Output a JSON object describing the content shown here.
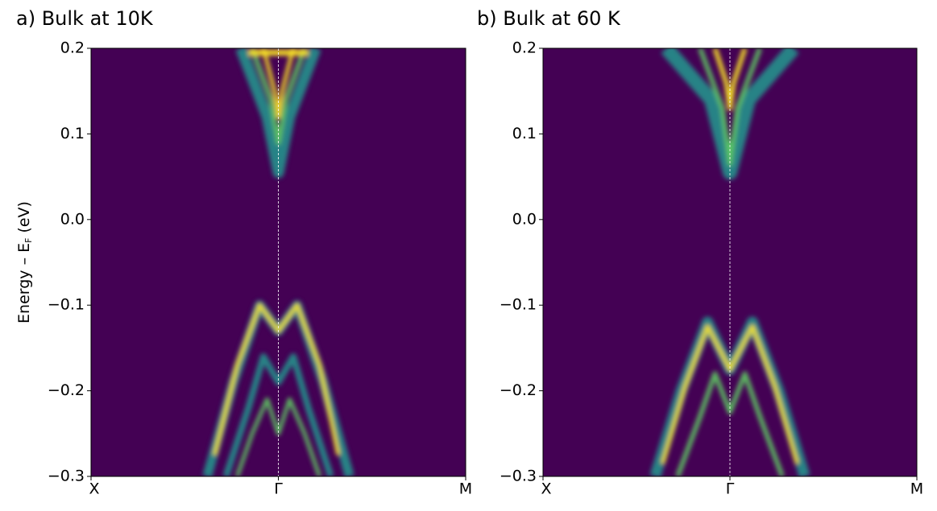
{
  "chart_data": [
    {
      "type": "heatmap",
      "title": "a) Bulk at 10K",
      "ylabel_parts": [
        "Energy – E",
        "F",
        "(eV)"
      ],
      "categories": [
        "X",
        "Γ",
        "M"
      ],
      "ylim": [
        -0.3,
        0.2
      ],
      "yticks": [
        {
          "value": -0.3,
          "label": "−0.3"
        },
        {
          "value": -0.2,
          "label": "−0.2"
        },
        {
          "value": -0.1,
          "label": "−0.1"
        },
        {
          "value": 0,
          "label": "0.0"
        },
        0.1,
        0.2
      ],
      "background": "#440154"
    },
    {
      "type": "heatmap",
      "title": "b) Bulk at 60 K",
      "categories": [
        "X",
        "Γ",
        "M"
      ],
      "ylim": [
        -0.3,
        0.2
      ],
      "yticks": [
        {
          "value": -0.3,
          "label": "−0.3"
        },
        {
          "value": -0.2,
          "label": "−0.2"
        },
        {
          "value": -0.1,
          "label": "−0.1"
        },
        {
          "value": 0,
          "label": "0.0"
        },
        0.1,
        0.2
      ],
      "background": "#440154"
    }
  ]
}
